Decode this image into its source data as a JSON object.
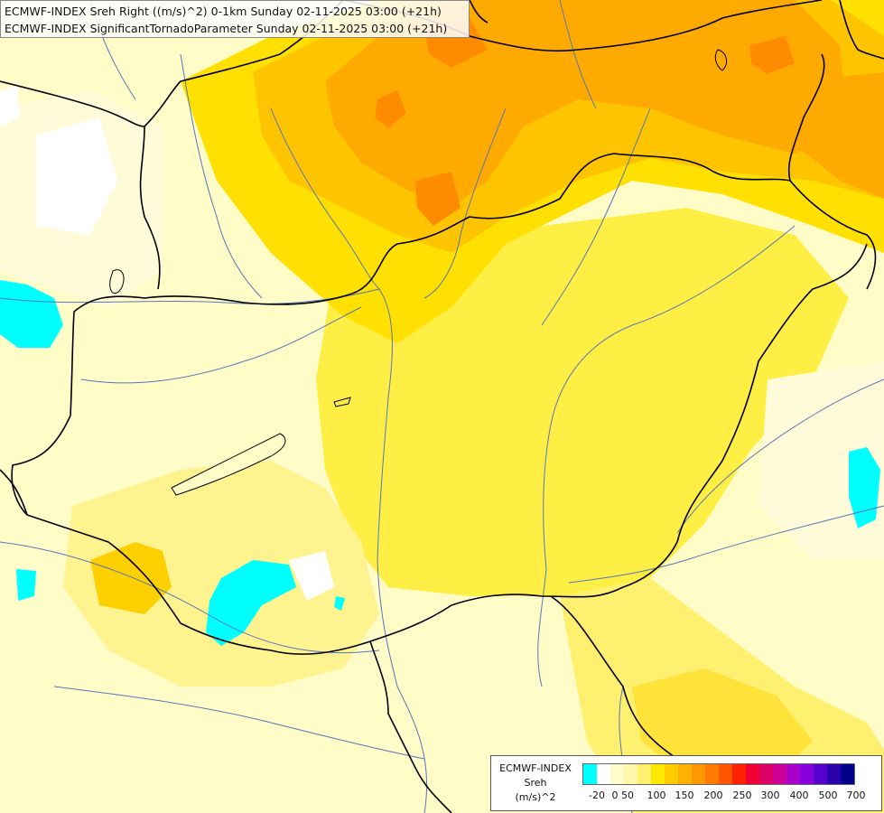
{
  "title": {
    "line1": "ECMWF-INDEX Sreh Right ((m/s)^2) 0-1km Sunday 02-11-2025 03:00 (+21h)",
    "line2": "ECMWF-INDEX SignificantTornadoParameter Sunday 02-11-2025 03:00 (+21h)"
  },
  "legend": {
    "source": "ECMWF-INDEX",
    "variable": "Sreh",
    "unit": "(m/s)^2",
    "ticks": [
      "-20",
      "0",
      "50",
      "100",
      "150",
      "200",
      "250",
      "300",
      "400",
      "500",
      "700"
    ],
    "colors": [
      "#00ffff",
      "#ffffff",
      "#fffccc",
      "#fff8a8",
      "#fff070",
      "#ffe800",
      "#ffcc00",
      "#ffb000",
      "#ff9800",
      "#ff7a00",
      "#ff5500",
      "#ff2200",
      "#ee0033",
      "#dd0066",
      "#cc0099",
      "#aa00cc",
      "#8800dd",
      "#5500cc",
      "#2a00aa",
      "#000088"
    ]
  },
  "palette": {
    "background": "#fffcc8",
    "pale": "#fff8a8",
    "light": "#fff070",
    "yellow": "#ffee33",
    "gold": "#ffe000",
    "amber": "#ffc400",
    "orange": "#ffaa00",
    "dark_orange": "#ff8c00",
    "cyan": "#00ffff",
    "white": "#ffffff",
    "border": "#000000",
    "river": "#5577bb"
  }
}
